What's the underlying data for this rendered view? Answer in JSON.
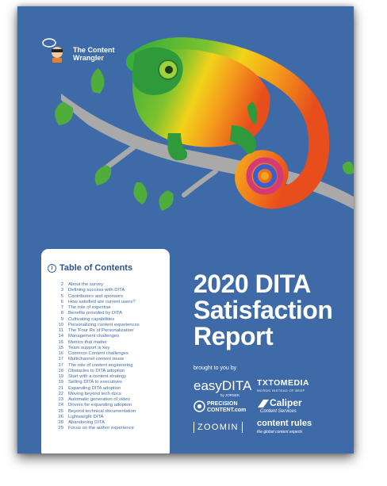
{
  "logo": {
    "line1": "The Content",
    "line2": "Wrangler"
  },
  "toc": {
    "title": "Table of Contents",
    "entries": [
      {
        "page": "2",
        "label": "About the survey"
      },
      {
        "page": "3",
        "label": "Defining success with DITA"
      },
      {
        "page": "5",
        "label": "Contributors and sponsors"
      },
      {
        "page": "6",
        "label": "How satisfied are current users?"
      },
      {
        "page": "7",
        "label": "The role of expertise"
      },
      {
        "page": "8",
        "label": "Benefits provided by DITA"
      },
      {
        "page": "9",
        "label": "Cultivating capabilities"
      },
      {
        "page": "10",
        "label": "Personalizing content experiences"
      },
      {
        "page": "11",
        "label": "The 'Four Rs of Personalization'"
      },
      {
        "page": "14",
        "label": "Management challenges"
      },
      {
        "page": "15",
        "label": "Metrics that matter"
      },
      {
        "page": "15",
        "label": "Team support is key"
      },
      {
        "page": "16",
        "label": "Common Content challenges"
      },
      {
        "page": "17",
        "label": "Multichannel content reuse"
      },
      {
        "page": "17",
        "label": "The role of content engineering"
      },
      {
        "page": "18",
        "label": "Obstacles to DITA adoption"
      },
      {
        "page": "19",
        "label": "Start with a content strategy"
      },
      {
        "page": "19",
        "label": "Selling DITA to executives"
      },
      {
        "page": "21",
        "label": "Expanding DITA adoption"
      },
      {
        "page": "22",
        "label": "Moving beyond tech docs"
      },
      {
        "page": "23",
        "label": "Automatic generation of video"
      },
      {
        "page": "24",
        "label": "Drivers for expanding adoption"
      },
      {
        "page": "25",
        "label": "Beyond technical documentation"
      },
      {
        "page": "26",
        "label": "Lightweight DITA"
      },
      {
        "page": "28",
        "label": "Abandoning DITA"
      },
      {
        "page": "29",
        "label": "Focus on the author experience"
      }
    ]
  },
  "report": {
    "line1": "2020 DITA",
    "line2": "Satisfaction",
    "line3": "Report"
  },
  "sponsors": {
    "brought_by": "brought to you by",
    "easydita": "easyDITA",
    "easydita_sub": "by JORSEK",
    "txtomedia": "TXTOMEDIA",
    "txtomedia_sub": "WORDS INSTEAD OF BEEP",
    "precision1": "PRECISION",
    "precision2": "CONTENT.com",
    "caliper": "Caliper",
    "caliper_sub": "Content Services",
    "zoomin": "ZOOMIN",
    "contentrules": "content rules",
    "contentrules_sub": "the global content experts"
  }
}
